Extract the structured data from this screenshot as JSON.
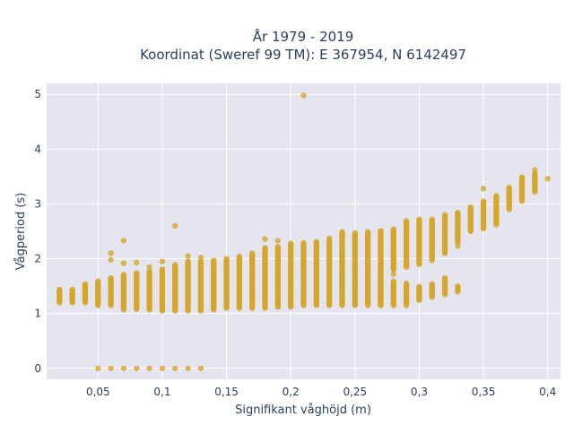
{
  "chart_data": {
    "type": "scatter",
    "title_lines": [
      "År 1979 - 2019",
      "Koordinat (Sweref 99 TM): E 367954, N 6142497"
    ],
    "xlabel": "Signifikant våghöjd (m)",
    "ylabel": "Vågperiod (s)",
    "xlim": [
      0.01,
      0.41
    ],
    "ylim": [
      -0.2,
      5.2
    ],
    "x_ticks": [
      0.05,
      0.1,
      0.15,
      0.2,
      0.25,
      0.3,
      0.35,
      0.4
    ],
    "x_tick_labels": [
      "0,05",
      "0,1",
      "0,15",
      "0,2",
      "0,25",
      "0,3",
      "0,35",
      "0,4"
    ],
    "y_ticks": [
      0,
      1,
      2,
      3,
      4,
      5
    ],
    "y_tick_labels": [
      "0",
      "1",
      "2",
      "3",
      "4",
      "5"
    ],
    "grid": true,
    "legend": "none",
    "marker_color": "#D4A62A",
    "background_color": "#E5E5EF",
    "columns": [
      {
        "x": 0.02,
        "ymin": 1.2,
        "ymax": 1.45
      },
      {
        "x": 0.03,
        "ymin": 1.2,
        "ymax": 1.45
      },
      {
        "x": 0.04,
        "ymin": 1.2,
        "ymax": 1.55
      },
      {
        "x": 0.05,
        "ymin": 1.15,
        "ymax": 1.6
      },
      {
        "x": 0.06,
        "ymin": 1.15,
        "ymax": 1.65
      },
      {
        "x": 0.07,
        "ymin": 1.07,
        "ymax": 1.72
      },
      {
        "x": 0.08,
        "ymin": 1.08,
        "ymax": 1.75
      },
      {
        "x": 0.09,
        "ymin": 1.07,
        "ymax": 1.78
      },
      {
        "x": 0.1,
        "ymin": 1.05,
        "ymax": 1.82
      },
      {
        "x": 0.11,
        "ymin": 1.05,
        "ymax": 1.9
      },
      {
        "x": 0.12,
        "ymin": 1.05,
        "ymax": 1.95
      },
      {
        "x": 0.13,
        "ymin": 1.05,
        "ymax": 1.95
      },
      {
        "x": 0.14,
        "ymin": 1.07,
        "ymax": 1.98
      },
      {
        "x": 0.15,
        "ymin": 1.1,
        "ymax": 2.0
      },
      {
        "x": 0.16,
        "ymin": 1.1,
        "ymax": 2.05
      },
      {
        "x": 0.17,
        "ymin": 1.1,
        "ymax": 2.1
      },
      {
        "x": 0.18,
        "ymin": 1.1,
        "ymax": 2.2
      },
      {
        "x": 0.19,
        "ymin": 1.12,
        "ymax": 2.22
      },
      {
        "x": 0.2,
        "ymin": 1.12,
        "ymax": 2.28
      },
      {
        "x": 0.21,
        "ymin": 1.15,
        "ymax": 2.3
      },
      {
        "x": 0.22,
        "ymin": 1.15,
        "ymax": 2.32
      },
      {
        "x": 0.23,
        "ymin": 1.15,
        "ymax": 2.38
      },
      {
        "x": 0.24,
        "ymin": 1.15,
        "ymax": 2.5
      },
      {
        "x": 0.25,
        "ymin": 1.15,
        "ymax": 2.48
      },
      {
        "x": 0.26,
        "ymin": 1.15,
        "ymax": 2.5
      },
      {
        "x": 0.27,
        "ymin": 1.15,
        "ymax": 2.52
      },
      {
        "x": 0.28,
        "ymin": 1.8,
        "ymax": 2.55
      },
      {
        "x": 0.29,
        "ymin": 1.85,
        "ymax": 2.7
      },
      {
        "x": 0.3,
        "ymin": 1.9,
        "ymax": 2.72
      },
      {
        "x": 0.31,
        "ymin": 2.0,
        "ymax": 2.72
      },
      {
        "x": 0.32,
        "ymin": 2.1,
        "ymax": 2.8
      },
      {
        "x": 0.33,
        "ymin": 2.3,
        "ymax": 2.85
      },
      {
        "x": 0.34,
        "ymin": 2.5,
        "ymax": 2.95
      },
      {
        "x": 0.35,
        "ymin": 2.55,
        "ymax": 3.05
      },
      {
        "x": 0.36,
        "ymin": 2.65,
        "ymax": 3.15
      },
      {
        "x": 0.37,
        "ymin": 2.9,
        "ymax": 3.3
      },
      {
        "x": 0.38,
        "ymin": 3.05,
        "ymax": 3.5
      },
      {
        "x": 0.39,
        "ymin": 3.25,
        "ymax": 3.55
      }
    ],
    "lower_band": [
      {
        "x": 0.27,
        "ymin": 1.15,
        "ymax": 1.6
      },
      {
        "x": 0.28,
        "ymin": 1.15,
        "ymax": 1.6
      },
      {
        "x": 0.29,
        "ymin": 1.15,
        "ymax": 1.55
      },
      {
        "x": 0.3,
        "ymin": 1.25,
        "ymax": 1.5
      },
      {
        "x": 0.31,
        "ymin": 1.3,
        "ymax": 1.55
      },
      {
        "x": 0.32,
        "ymin": 1.35,
        "ymax": 1.65
      },
      {
        "x": 0.33,
        "ymin": 1.4,
        "ymax": 1.5
      }
    ],
    "points": [
      {
        "x": 0.06,
        "y": 2.1
      },
      {
        "x": 0.06,
        "y": 1.98
      },
      {
        "x": 0.07,
        "y": 2.33
      },
      {
        "x": 0.07,
        "y": 1.92
      },
      {
        "x": 0.08,
        "y": 1.93
      },
      {
        "x": 0.09,
        "y": 1.85
      },
      {
        "x": 0.1,
        "y": 1.95
      },
      {
        "x": 0.11,
        "y": 2.6
      },
      {
        "x": 0.12,
        "y": 2.05
      },
      {
        "x": 0.13,
        "y": 2.02
      },
      {
        "x": 0.18,
        "y": 2.36
      },
      {
        "x": 0.19,
        "y": 2.33
      },
      {
        "x": 0.21,
        "y": 4.98
      },
      {
        "x": 0.28,
        "y": 1.72
      },
      {
        "x": 0.3,
        "y": 1.25
      },
      {
        "x": 0.31,
        "y": 1.97
      },
      {
        "x": 0.33,
        "y": 2.23
      },
      {
        "x": 0.35,
        "y": 3.28
      },
      {
        "x": 0.36,
        "y": 2.62
      },
      {
        "x": 0.39,
        "y": 3.62
      },
      {
        "x": 0.39,
        "y": 3.22
      },
      {
        "x": 0.4,
        "y": 3.46
      },
      {
        "x": 0.05,
        "y": 0
      },
      {
        "x": 0.06,
        "y": 0
      },
      {
        "x": 0.07,
        "y": 0
      },
      {
        "x": 0.08,
        "y": 0
      },
      {
        "x": 0.09,
        "y": 0
      },
      {
        "x": 0.1,
        "y": 0
      },
      {
        "x": 0.11,
        "y": 0
      },
      {
        "x": 0.12,
        "y": 0
      },
      {
        "x": 0.13,
        "y": 0
      }
    ]
  }
}
